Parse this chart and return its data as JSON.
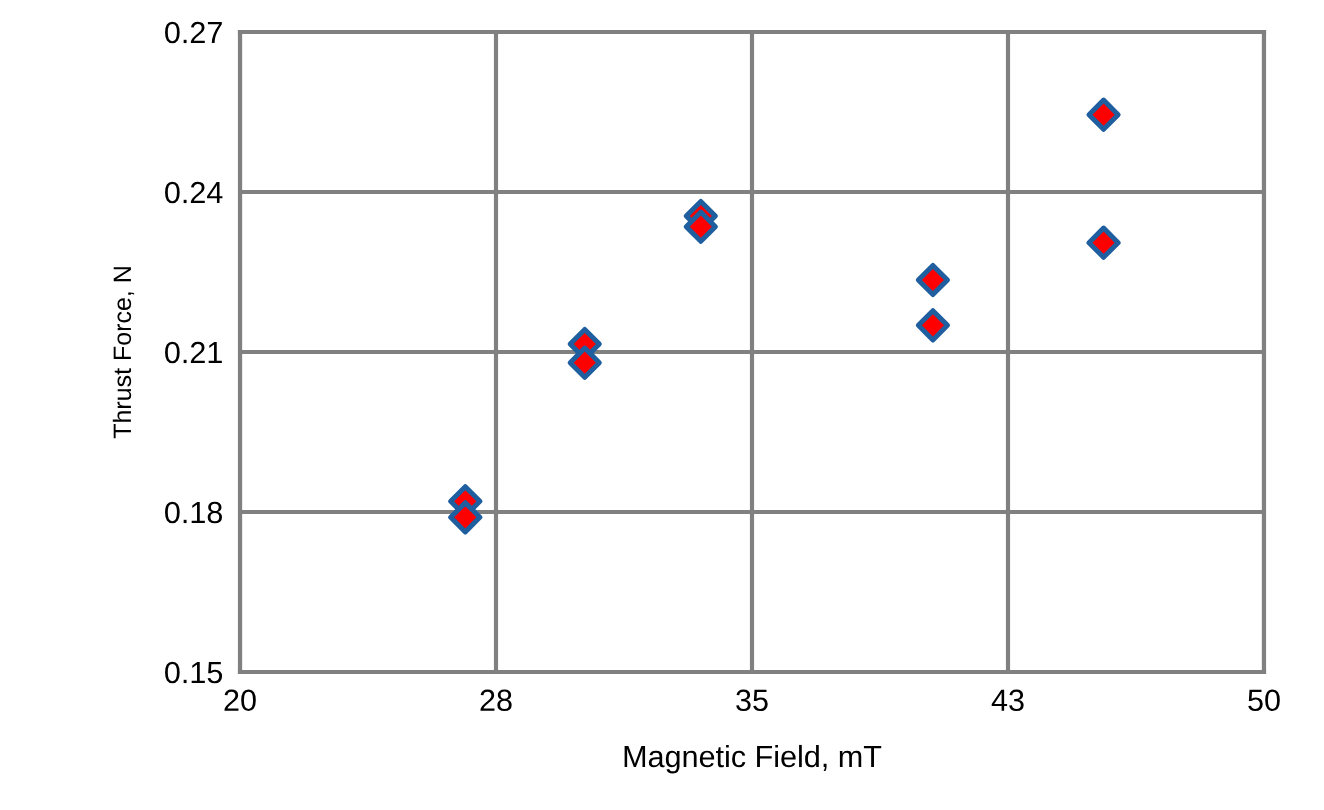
{
  "chart_data": {
    "type": "scatter",
    "xlabel": "Magnetic Field, mT",
    "ylabel": "Thrust Force, N",
    "x": [
      26.6,
      26.6,
      30.1,
      30.1,
      33.5,
      33.5,
      40.3,
      40.3,
      45.3,
      45.3
    ],
    "values": [
      0.182,
      0.179,
      0.2115,
      0.208,
      0.2355,
      0.2335,
      0.2235,
      0.215,
      0.2545,
      0.2305
    ],
    "color": "#ff0000",
    "marker": "diamond",
    "xlim": [
      20,
      50
    ],
    "xticks": [
      20,
      {
        "value": 27.5,
        "label": "28"
      },
      35,
      {
        "value": 42.5,
        "label": "43"
      },
      50
    ],
    "ylim": [
      0.15,
      0.27
    ],
    "yticks": [
      0.15,
      0.18,
      0.21,
      0.24,
      0.27
    ],
    "grid": true
  }
}
